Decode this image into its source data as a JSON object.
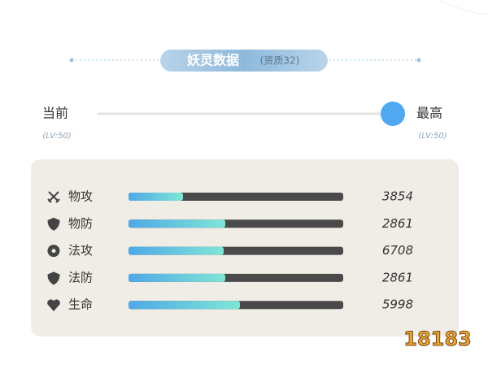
{
  "header": {
    "title": "妖灵数据",
    "subtitle": "(资质32)"
  },
  "slider": {
    "left_label": "当前",
    "left_level": "(LV:50)",
    "right_label": "最高",
    "right_level": "(LV:50)"
  },
  "stats": [
    {
      "name": "物攻",
      "value": 3854
    },
    {
      "name": "物防",
      "value": 2861
    },
    {
      "name": "法攻",
      "value": 6708
    },
    {
      "name": "法防",
      "value": 2861
    },
    {
      "name": "生命",
      "value": 5998
    }
  ],
  "watermark": "18183"
}
